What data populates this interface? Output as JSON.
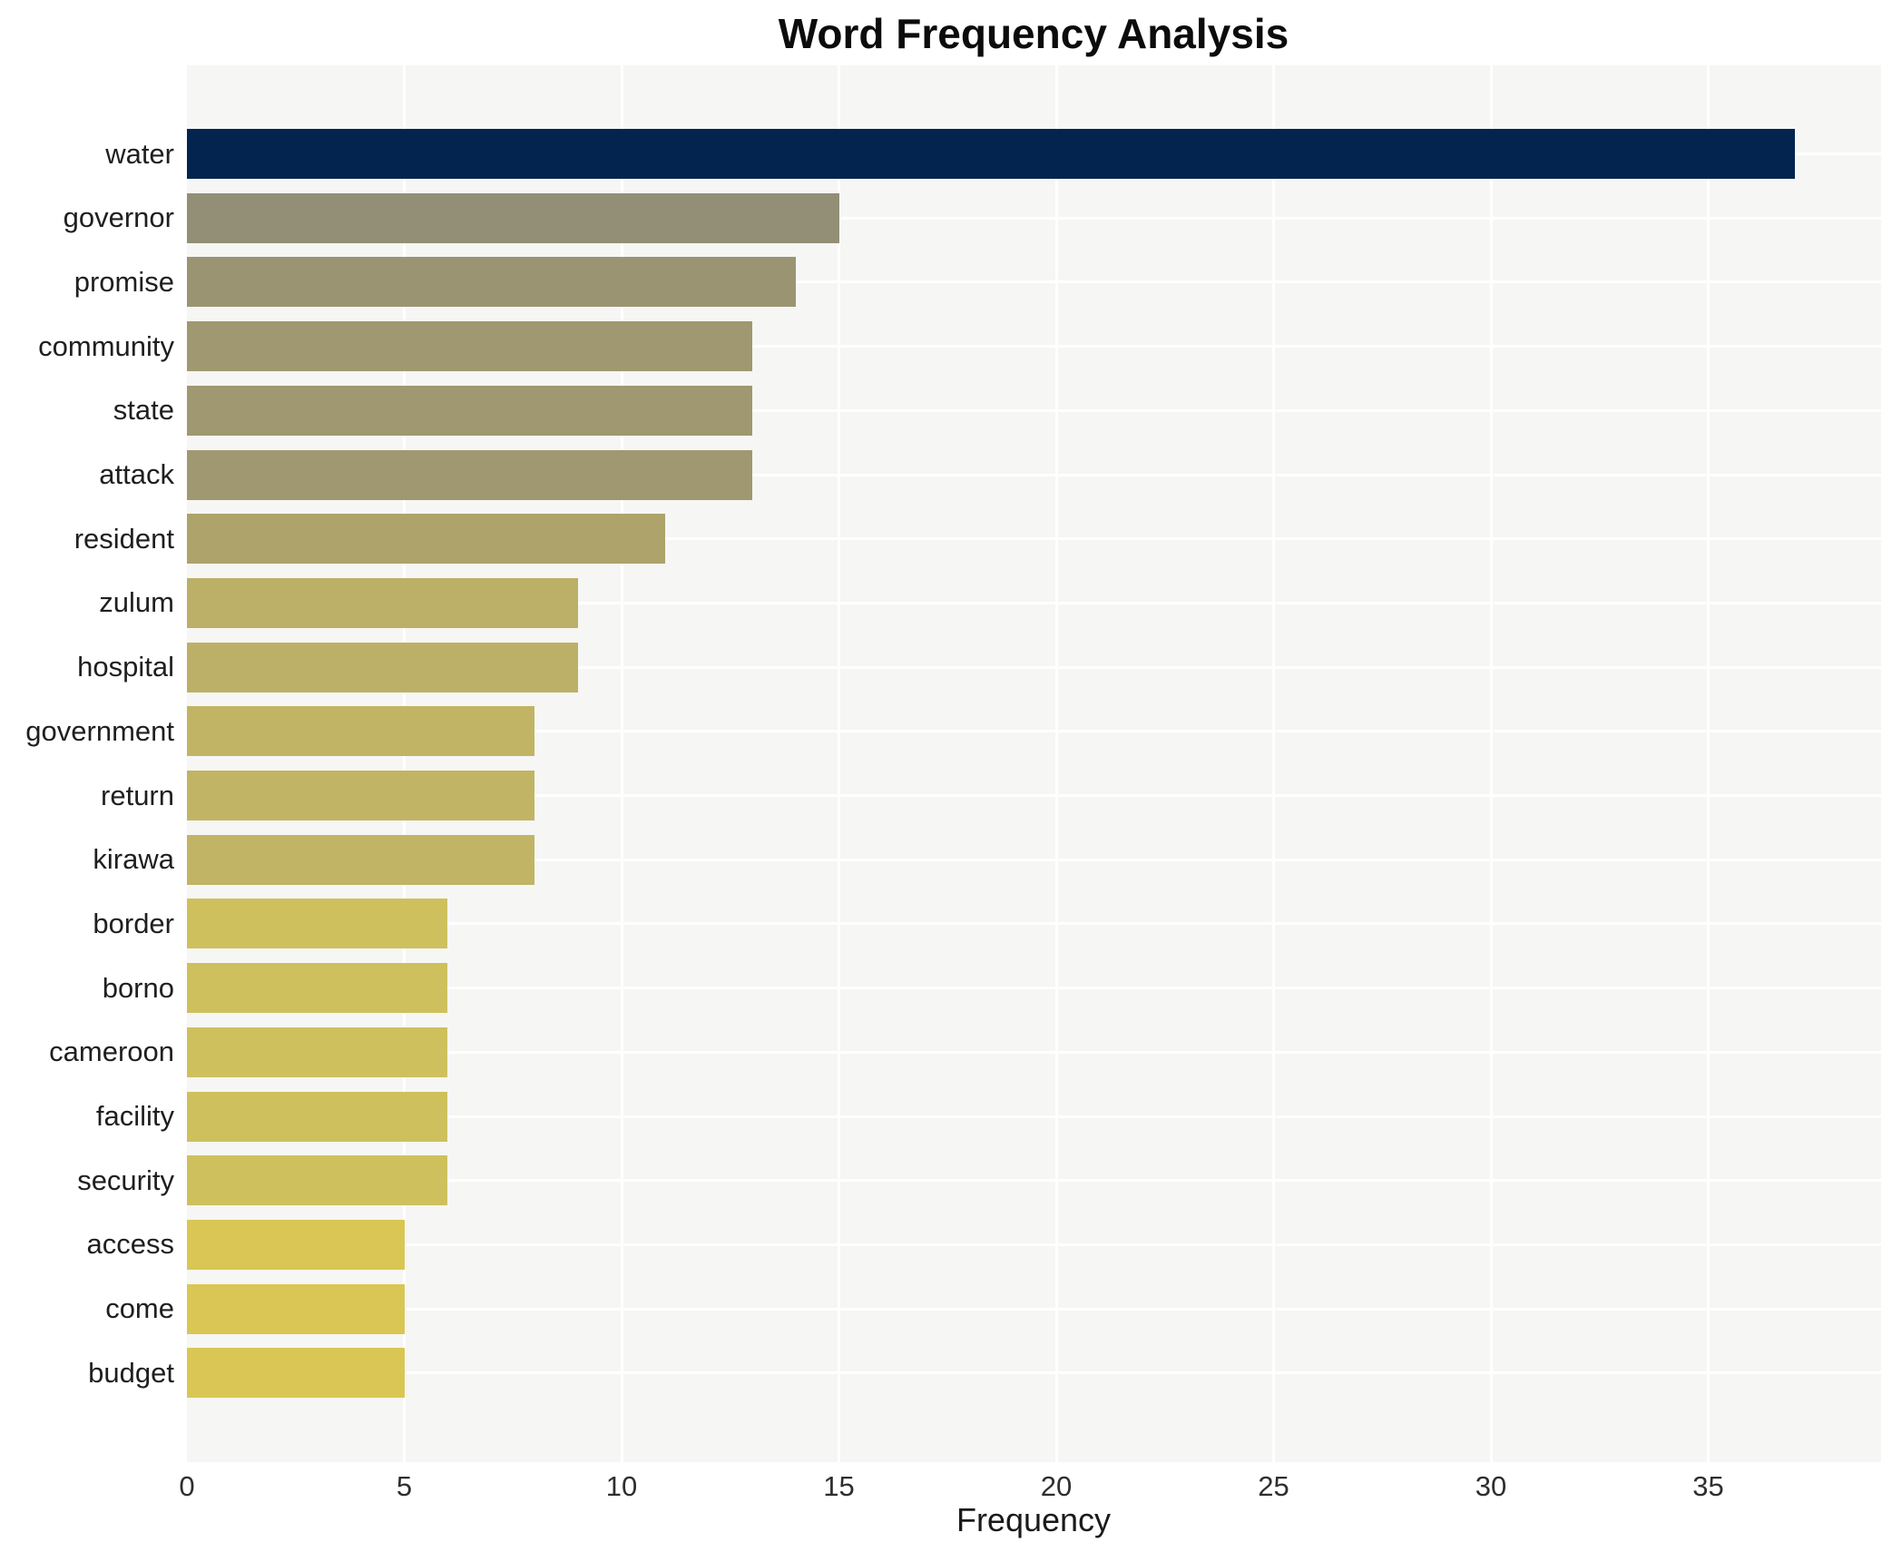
{
  "chart_data": {
    "type": "bar",
    "orientation": "horizontal",
    "title": "Word Frequency Analysis",
    "xlabel": "Frequency",
    "ylabel": "",
    "categories": [
      "water",
      "governor",
      "promise",
      "community",
      "state",
      "attack",
      "resident",
      "zulum",
      "hospital",
      "government",
      "return",
      "kirawa",
      "border",
      "borno",
      "cameroon",
      "facility",
      "security",
      "access",
      "come",
      "budget"
    ],
    "values": [
      37,
      15,
      14,
      13,
      13,
      13,
      11,
      9,
      9,
      8,
      8,
      8,
      6,
      6,
      6,
      6,
      6,
      5,
      5,
      5
    ],
    "bar_colors": [
      "#02244f",
      "#938e76",
      "#9a9473",
      "#a09870",
      "#a09870",
      "#a09870",
      "#ada36b",
      "#bcb068",
      "#bcb068",
      "#c1b465",
      "#c1b465",
      "#c1b465",
      "#cfc05e",
      "#cfc05e",
      "#cfc05e",
      "#cfc05e",
      "#cfc05e",
      "#d9c654",
      "#d9c654",
      "#d9c654"
    ],
    "x_ticks": [
      0,
      5,
      10,
      15,
      20,
      25,
      30,
      35
    ],
    "xlim": [
      0,
      39
    ],
    "grid": "on",
    "gridline_color": "#ffffff",
    "plot_bg_color": "#f6f6f4",
    "figure_bg_color": "#ffffff",
    "legend_position": "none"
  }
}
